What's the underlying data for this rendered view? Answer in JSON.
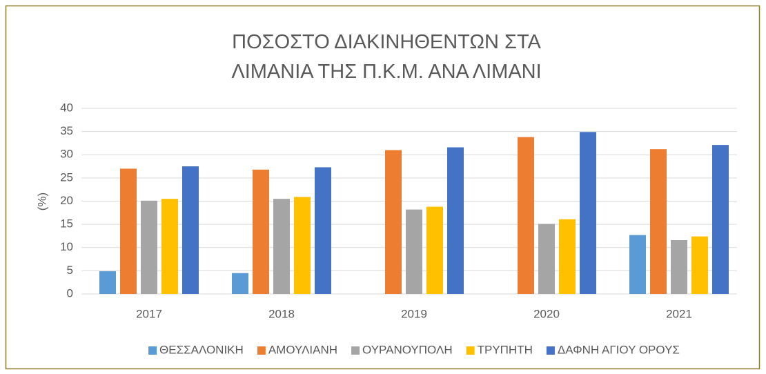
{
  "chart_data": {
    "type": "bar",
    "title": "ΠΟΣΟΣΤΟ ΔΙΑΚΙΝΗΘΕΝΤΩΝ ΣΤΑ ΛΙΜΑΝΙΑ ΤΗΣ Π.Κ.Μ. ΑΝΑ ΛΙΜΑΝΙ",
    "y_label": "(%)",
    "categories": [
      "2017",
      "2018",
      "2019",
      "2020",
      "2021"
    ],
    "series": [
      {
        "name": "ΘΕΣΣΑΛΟΝΙΚΗ",
        "color": "#5b9bd5",
        "values": [
          4.9,
          4.5,
          0,
          0,
          12.7
        ]
      },
      {
        "name": "ΑΜΟΥΛΙΑΝΗ",
        "color": "#ed7d31",
        "values": [
          27,
          26.8,
          31,
          33.8,
          31.2
        ]
      },
      {
        "name": "ΟΥΡΑΝΟΥΠΟΛΗ",
        "color": "#a5a5a5",
        "values": [
          20.1,
          20.5,
          18.2,
          15.1,
          11.6
        ]
      },
      {
        "name": "ΤΡΥΠΗΤΗ",
        "color": "#ffc000",
        "values": [
          20.5,
          20.9,
          18.8,
          16.1,
          12.4
        ]
      },
      {
        "name": "ΔΑΦΝΗ ΑΓΙΟΥ ΟΡΟΥΣ",
        "color": "#4472c4",
        "values": [
          27.5,
          27.3,
          31.6,
          34.9,
          32.1
        ]
      }
    ],
    "ylim": [
      0,
      40
    ],
    "yticks": [
      0,
      5,
      10,
      15,
      20,
      25,
      30,
      35,
      40
    ],
    "grid": true,
    "legend": "bottom"
  }
}
